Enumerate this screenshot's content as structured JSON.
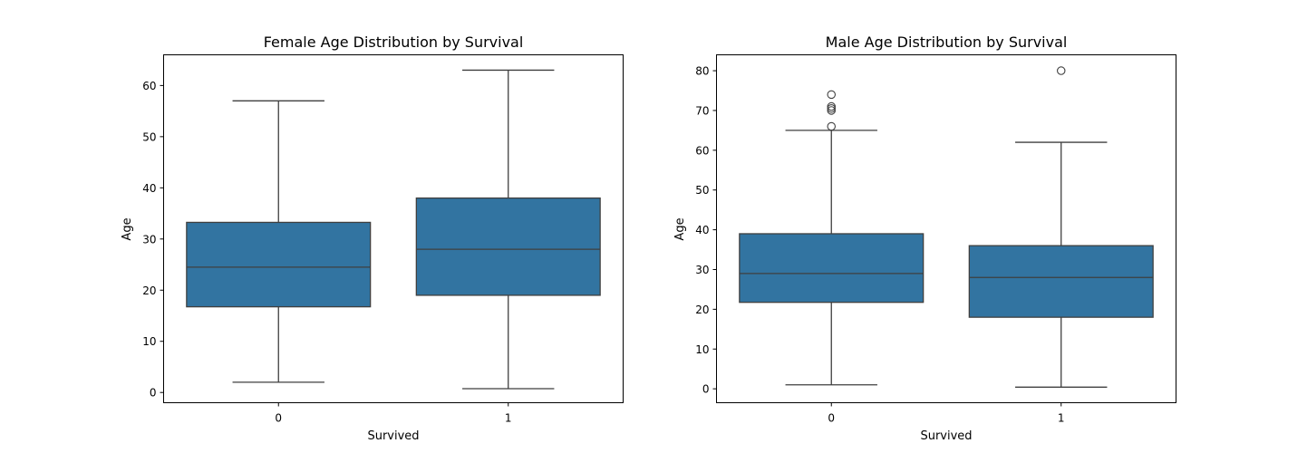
{
  "chart_data": [
    {
      "type": "box",
      "title": "Female Age Distribution by Survival",
      "xlabel": "Survived",
      "ylabel": "Age",
      "categories": [
        "0",
        "1"
      ],
      "ylim": [
        -2,
        66
      ],
      "yticks": [
        0,
        10,
        20,
        30,
        40,
        50,
        60
      ],
      "grid": false,
      "color": "#3274a1",
      "boxes": [
        {
          "category": "0",
          "whislo": 2,
          "q1": 16.75,
          "med": 24.5,
          "q3": 33.25,
          "whishi": 57,
          "fliers": []
        },
        {
          "category": "1",
          "whislo": 0.75,
          "q1": 19,
          "med": 28,
          "q3": 38,
          "whishi": 63,
          "fliers": []
        }
      ]
    },
    {
      "type": "box",
      "title": "Male Age Distribution by Survival",
      "xlabel": "Survived",
      "ylabel": "Age",
      "categories": [
        "0",
        "1"
      ],
      "ylim": [
        -3.5,
        84
      ],
      "yticks": [
        0,
        10,
        20,
        30,
        40,
        50,
        60,
        70,
        80
      ],
      "grid": false,
      "color": "#3274a1",
      "boxes": [
        {
          "category": "0",
          "whislo": 1,
          "q1": 21.75,
          "med": 29,
          "q3": 39,
          "whishi": 65,
          "fliers": [
            66,
            70,
            70.5,
            71,
            74
          ]
        },
        {
          "category": "1",
          "whislo": 0.42,
          "q1": 18,
          "med": 28,
          "q3": 36,
          "whishi": 62,
          "fliers": [
            80
          ]
        }
      ]
    }
  ]
}
